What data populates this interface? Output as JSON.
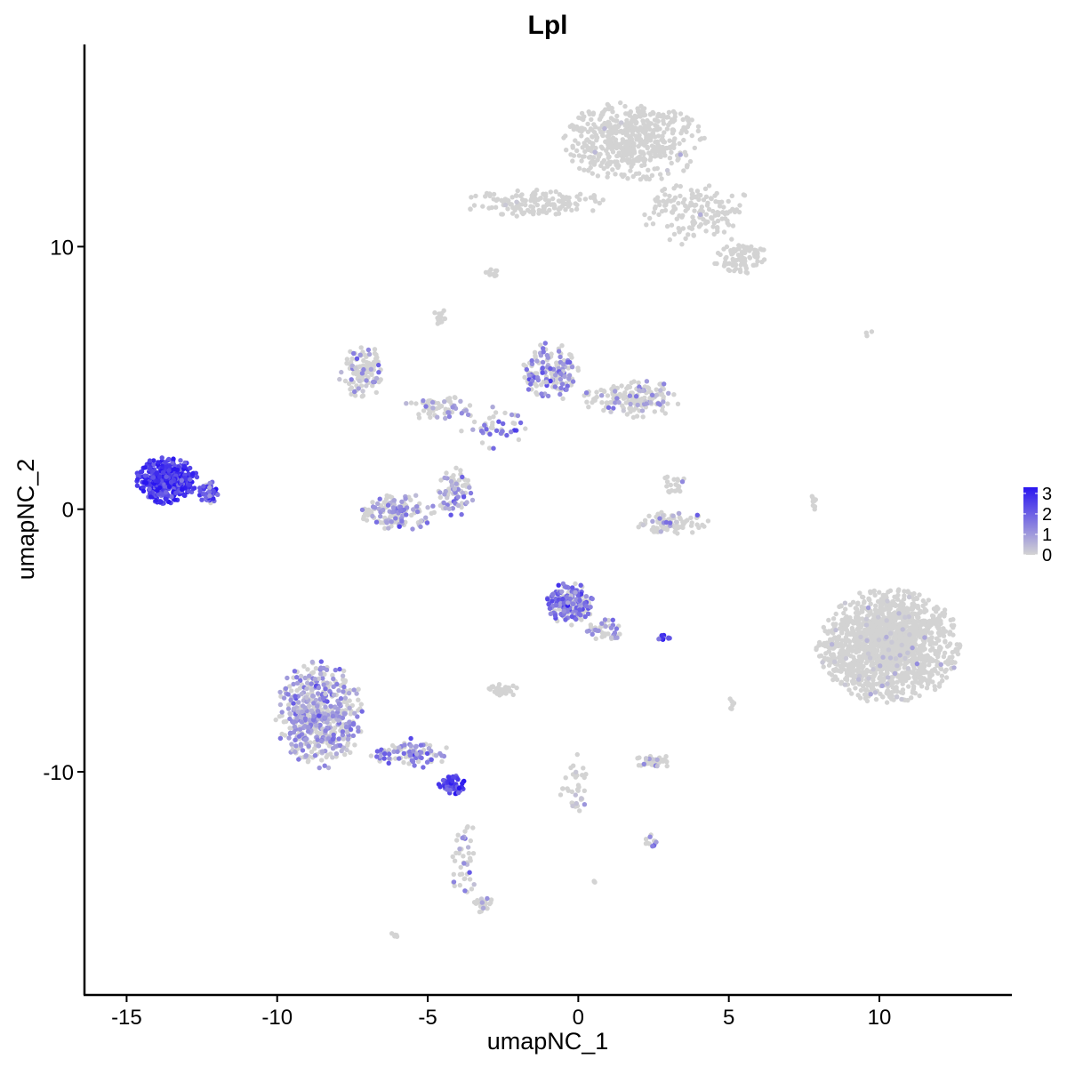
{
  "chart_data": {
    "type": "scatter",
    "title": "Lpl",
    "xlabel": "umapNC_1",
    "ylabel": "umapNC_2",
    "xlim": [
      -16.4,
      14.4
    ],
    "ylim": [
      -18.5,
      17.7
    ],
    "x_ticks": [
      -15,
      -10,
      -5,
      0,
      5,
      10
    ],
    "x_tick_labels": [
      "-15",
      "-10",
      "-5",
      "0",
      "5",
      "10"
    ],
    "y_ticks": [
      -10,
      0,
      10
    ],
    "y_tick_labels": [
      "-10",
      "0",
      "10"
    ],
    "grid": false,
    "legend": {
      "placement": "right",
      "type": "colorbar",
      "min": 0,
      "max": 3.3,
      "ticks": [
        0,
        1,
        2,
        3
      ],
      "tick_labels": [
        "0",
        "1",
        "2",
        "3"
      ],
      "low_color": "#d3d3d3",
      "high_color": "#2a16f0"
    },
    "clusters": [
      {
        "name": "c1",
        "cx": 1.8,
        "cy": 14.0,
        "rx": 2.3,
        "ry": 1.5,
        "n": 520,
        "expr_mean": 0.0,
        "expr_frac": 0.01
      },
      {
        "name": "c1_arm_left",
        "cx": -1.5,
        "cy": 11.7,
        "rx": 2.4,
        "ry": 0.55,
        "n": 140,
        "expr_mean": 0.0,
        "expr_frac": 0.01
      },
      {
        "name": "c1_arm_right",
        "cx": 4.0,
        "cy": 11.3,
        "rx": 1.9,
        "ry": 1.2,
        "n": 150,
        "expr_mean": 0.0,
        "expr_frac": 0.01
      },
      {
        "name": "c1_tail",
        "cx": 5.4,
        "cy": 9.6,
        "rx": 0.9,
        "ry": 0.6,
        "n": 90,
        "expr_mean": 0.0,
        "expr_frac": 0.0
      },
      {
        "name": "c2_left",
        "cx": -7.2,
        "cy": 5.2,
        "rx": 0.8,
        "ry": 1.0,
        "n": 110,
        "expr_mean": 0.9,
        "expr_frac": 0.25
      },
      {
        "name": "c2_mid",
        "cx": -4.6,
        "cy": 3.9,
        "rx": 1.2,
        "ry": 0.5,
        "n": 60,
        "expr_mean": 1.0,
        "expr_frac": 0.3
      },
      {
        "name": "c3",
        "cx": -0.9,
        "cy": 5.2,
        "rx": 0.9,
        "ry": 1.1,
        "n": 150,
        "expr_mean": 1.3,
        "expr_frac": 0.45
      },
      {
        "name": "c3_right",
        "cx": 1.8,
        "cy": 4.2,
        "rx": 1.6,
        "ry": 0.7,
        "n": 170,
        "expr_mean": 1.0,
        "expr_frac": 0.3
      },
      {
        "name": "c3_branch",
        "cx": -2.8,
        "cy": 3.2,
        "rx": 1.2,
        "ry": 0.9,
        "n": 45,
        "expr_mean": 1.6,
        "expr_frac": 0.5
      },
      {
        "name": "c4",
        "cx": -6.0,
        "cy": -0.1,
        "rx": 1.2,
        "ry": 0.7,
        "n": 140,
        "expr_mean": 1.0,
        "expr_frac": 0.45
      },
      {
        "name": "c4_arc",
        "cx": -4.1,
        "cy": 0.6,
        "rx": 0.6,
        "ry": 1.0,
        "n": 80,
        "expr_mean": 1.0,
        "expr_frac": 0.45
      },
      {
        "name": "c5",
        "cx": -13.7,
        "cy": 1.1,
        "rx": 1.0,
        "ry": 0.85,
        "n": 430,
        "expr_mean": 2.7,
        "expr_frac": 1.0
      },
      {
        "name": "c5_tip",
        "cx": -12.3,
        "cy": 0.6,
        "rx": 0.35,
        "ry": 0.5,
        "n": 40,
        "expr_mean": 2.3,
        "expr_frac": 0.95
      },
      {
        "name": "c6",
        "cx": -0.3,
        "cy": -3.6,
        "rx": 0.75,
        "ry": 0.8,
        "n": 200,
        "expr_mean": 1.6,
        "expr_frac": 0.65
      },
      {
        "name": "c6_tail",
        "cx": 0.9,
        "cy": -4.6,
        "rx": 0.6,
        "ry": 0.4,
        "n": 40,
        "expr_mean": 1.2,
        "expr_frac": 0.45
      },
      {
        "name": "c7",
        "cx": 10.3,
        "cy": -5.2,
        "rx": 2.3,
        "ry": 2.1,
        "n": 1500,
        "expr_mean": 0.0,
        "expr_frac": 0.03
      },
      {
        "name": "c8",
        "cx": 3.1,
        "cy": -0.5,
        "rx": 1.2,
        "ry": 0.45,
        "n": 90,
        "expr_mean": 1.0,
        "expr_frac": 0.15
      },
      {
        "name": "c8_upper",
        "cx": 3.1,
        "cy": 0.9,
        "rx": 0.5,
        "ry": 0.5,
        "n": 20,
        "expr_mean": 0.9,
        "expr_frac": 0.15
      },
      {
        "name": "c9",
        "cx": -8.6,
        "cy": -7.8,
        "rx": 1.4,
        "ry": 2.0,
        "n": 550,
        "expr_mean": 1.1,
        "expr_frac": 0.5
      },
      {
        "name": "c9_tail",
        "cx": -5.6,
        "cy": -9.3,
        "rx": 1.3,
        "ry": 0.55,
        "n": 90,
        "expr_mean": 1.4,
        "expr_frac": 0.55
      },
      {
        "name": "c10",
        "cx": -4.2,
        "cy": -10.5,
        "rx": 0.45,
        "ry": 0.35,
        "n": 55,
        "expr_mean": 2.5,
        "expr_frac": 0.9
      },
      {
        "name": "c10_tail",
        "cx": -3.8,
        "cy": -13.2,
        "rx": 0.4,
        "ry": 1.8,
        "n": 45,
        "expr_mean": 1.0,
        "expr_frac": 0.35
      },
      {
        "name": "c11",
        "cx": 2.5,
        "cy": -9.6,
        "rx": 0.6,
        "ry": 0.25,
        "n": 40,
        "expr_mean": 0.8,
        "expr_frac": 0.15
      },
      {
        "name": "c12",
        "cx": -2.5,
        "cy": -6.9,
        "rx": 0.5,
        "ry": 0.25,
        "n": 35,
        "expr_mean": 0.0,
        "expr_frac": 0.0
      },
      {
        "name": "c13",
        "cx": 2.8,
        "cy": -4.9,
        "rx": 0.3,
        "ry": 0.1,
        "n": 12,
        "expr_mean": 2.2,
        "expr_frac": 0.9
      },
      {
        "name": "c14",
        "cx": -3.2,
        "cy": -15.0,
        "rx": 0.35,
        "ry": 0.35,
        "n": 20,
        "expr_mean": 1.0,
        "expr_frac": 0.25
      },
      {
        "name": "c15",
        "cx": 2.4,
        "cy": -12.6,
        "rx": 0.2,
        "ry": 0.25,
        "n": 12,
        "expr_mean": 1.5,
        "expr_frac": 0.5
      },
      {
        "name": "c16",
        "cx": -0.1,
        "cy": -10.5,
        "rx": 0.5,
        "ry": 1.2,
        "n": 35,
        "expr_mean": 0.5,
        "expr_frac": 0.15
      },
      {
        "name": "c17",
        "cx": -2.9,
        "cy": 9.0,
        "rx": 0.2,
        "ry": 0.2,
        "n": 10,
        "expr_mean": 0.0,
        "expr_frac": 0.0
      },
      {
        "name": "c18",
        "cx": -4.6,
        "cy": 7.3,
        "rx": 0.2,
        "ry": 0.35,
        "n": 14,
        "expr_mean": 0.0,
        "expr_frac": 0.0
      },
      {
        "name": "c19",
        "cx": 7.8,
        "cy": 0.2,
        "rx": 0.12,
        "ry": 0.4,
        "n": 8,
        "expr_mean": 0.0,
        "expr_frac": 0.0
      },
      {
        "name": "c20",
        "cx": 5.1,
        "cy": -7.4,
        "rx": 0.1,
        "ry": 0.35,
        "n": 6,
        "expr_mean": 0.8,
        "expr_frac": 0.3
      },
      {
        "name": "c21",
        "cx": -6.1,
        "cy": -16.2,
        "rx": 0.15,
        "ry": 0.1,
        "n": 5,
        "expr_mean": 0.0,
        "expr_frac": 0.0
      },
      {
        "name": "c22",
        "cx": 9.6,
        "cy": 6.7,
        "rx": 0.2,
        "ry": 0.1,
        "n": 3,
        "expr_mean": 0.0,
        "expr_frac": 0.0
      },
      {
        "name": "c23",
        "cx": 0.6,
        "cy": -14.2,
        "rx": 0.1,
        "ry": 0.1,
        "n": 3,
        "expr_mean": 0.0,
        "expr_frac": 0.0
      }
    ]
  }
}
